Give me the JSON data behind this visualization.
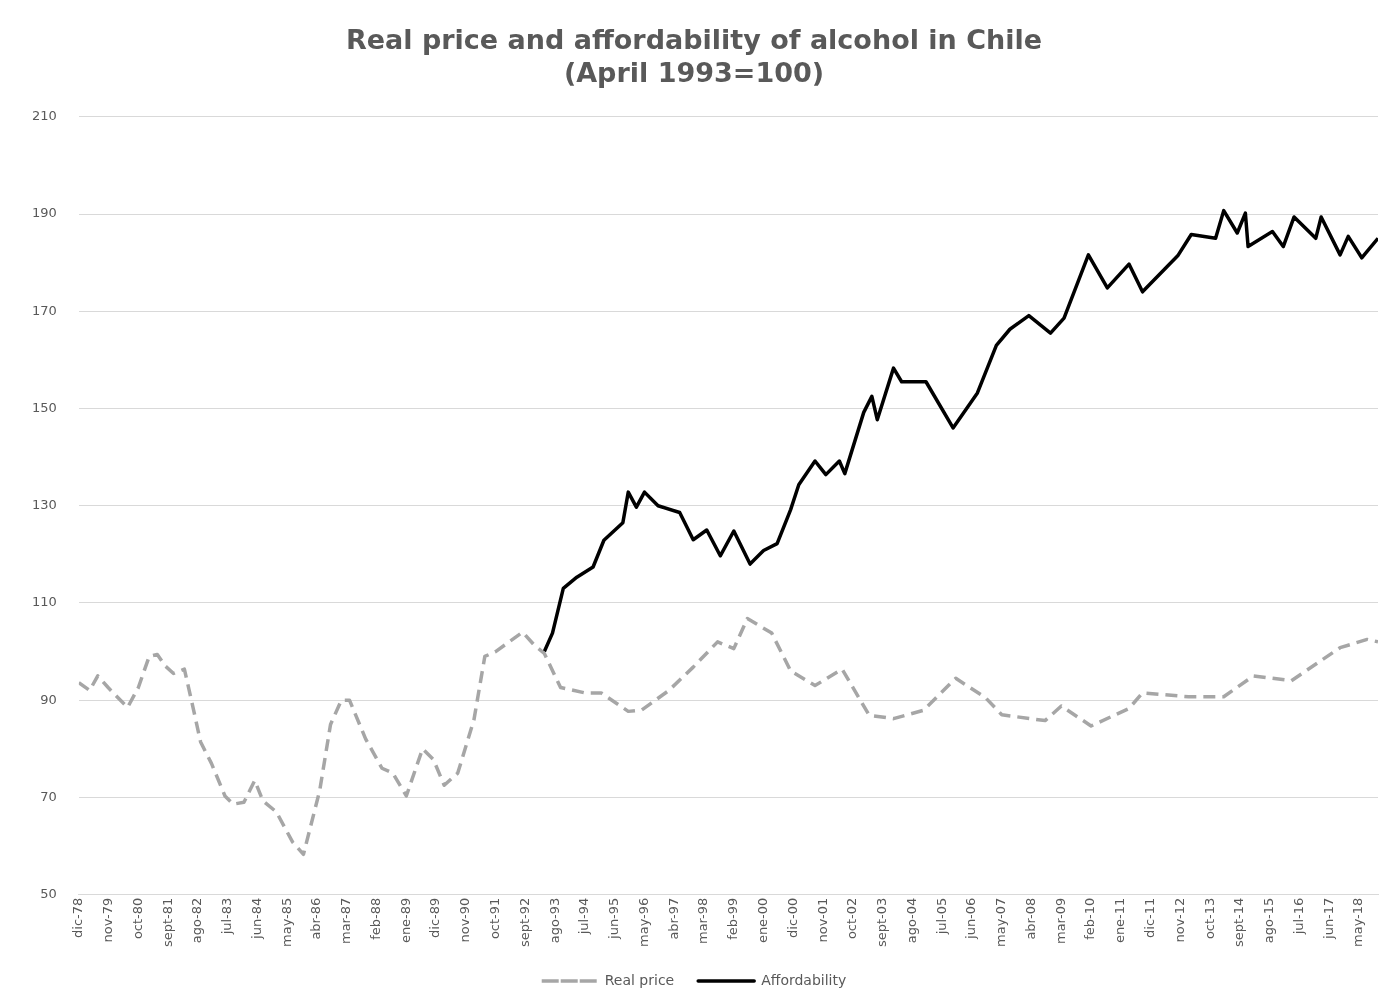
{
  "chart_data": {
    "type": "line",
    "title": "Real price and affordability of alcohol in Chile\n(April 1993=100)",
    "xlim": [
      "1978-12",
      "2018-12"
    ],
    "xticks": [
      {
        "value": "1978-12",
        "label": "dic-78"
      },
      {
        "value": "1979-11",
        "label": "nov-79"
      },
      {
        "value": "1980-10",
        "label": "oct-80"
      },
      {
        "value": "1981-09",
        "label": "sept-81"
      },
      {
        "value": "1982-08",
        "label": "ago-82"
      },
      {
        "value": "1983-07",
        "label": "jul-83"
      },
      {
        "value": "1984-06",
        "label": "jun-84"
      },
      {
        "value": "1985-05",
        "label": "may-85"
      },
      {
        "value": "1986-04",
        "label": "abr-86"
      },
      {
        "value": "1987-03",
        "label": "mar-87"
      },
      {
        "value": "1988-02",
        "label": "feb-88"
      },
      {
        "value": "1989-01",
        "label": "ene-89"
      },
      {
        "value": "1989-12",
        "label": "dic-89"
      },
      {
        "value": "1990-11",
        "label": "nov-90"
      },
      {
        "value": "1991-10",
        "label": "oct-91"
      },
      {
        "value": "1992-09",
        "label": "sept-92"
      },
      {
        "value": "1993-08",
        "label": "ago-93"
      },
      {
        "value": "1994-07",
        "label": "jul-94"
      },
      {
        "value": "1995-06",
        "label": "jun-95"
      },
      {
        "value": "1996-05",
        "label": "may-96"
      },
      {
        "value": "1997-04",
        "label": "abr-97"
      },
      {
        "value": "1998-03",
        "label": "mar-98"
      },
      {
        "value": "1999-02",
        "label": "feb-99"
      },
      {
        "value": "2000-01",
        "label": "ene-00"
      },
      {
        "value": "2000-12",
        "label": "dic-00"
      },
      {
        "value": "2001-11",
        "label": "nov-01"
      },
      {
        "value": "2002-10",
        "label": "oct-02"
      },
      {
        "value": "2003-09",
        "label": "sept-03"
      },
      {
        "value": "2004-08",
        "label": "ago-04"
      },
      {
        "value": "2005-07",
        "label": "jul-05"
      },
      {
        "value": "2006-06",
        "label": "jun-06"
      },
      {
        "value": "2007-05",
        "label": "may-07"
      },
      {
        "value": "2008-04",
        "label": "abr-08"
      },
      {
        "value": "2009-03",
        "label": "mar-09"
      },
      {
        "value": "2010-02",
        "label": "feb-10"
      },
      {
        "value": "2011-01",
        "label": "ene-11"
      },
      {
        "value": "2011-12",
        "label": "dic-11"
      },
      {
        "value": "2012-11",
        "label": "nov-12"
      },
      {
        "value": "2013-10",
        "label": "oct-13"
      },
      {
        "value": "2014-09",
        "label": "sept-14"
      },
      {
        "value": "2015-08",
        "label": "ago-15"
      },
      {
        "value": "2016-07",
        "label": "jul-16"
      },
      {
        "value": "2017-06",
        "label": "jun-17"
      },
      {
        "value": "2018-05",
        "label": "may-18"
      }
    ],
    "ylim": [
      50,
      210
    ],
    "yticks": [
      50,
      70,
      90,
      110,
      130,
      150,
      170,
      190,
      210
    ],
    "grid": "y",
    "legend": "bottom",
    "series": [
      {
        "name": "Real price",
        "color": "#a6a6a6",
        "line_style": "dashed",
        "x": [
          "1978-12",
          "1979-04",
          "1979-07",
          "1979-11",
          "1980-06",
          "1980-10",
          "1981-02",
          "1981-05",
          "1981-08",
          "1981-11",
          "1982-03",
          "1982-06",
          "1982-09",
          "1983-01",
          "1983-06",
          "1983-09",
          "1984-01",
          "1984-05",
          "1984-08",
          "1985-01",
          "1985-07",
          "1985-11",
          "1986-05",
          "1986-09",
          "1987-01",
          "1987-04",
          "1987-10",
          "1988-04",
          "1988-08",
          "1989-01",
          "1989-07",
          "1989-11",
          "1990-03",
          "1990-08",
          "1991-02",
          "1991-06",
          "1991-10",
          "1992-03",
          "1992-08",
          "1992-12",
          "1993-04",
          "1993-10",
          "1994-07",
          "1995-01",
          "1995-11",
          "1996-04",
          "1997-02",
          "1997-11",
          "1998-08",
          "1999-02",
          "1999-07",
          "2000-04",
          "2000-11",
          "2001-08",
          "2002-06",
          "2003-04",
          "2004-01",
          "2004-12",
          "2005-12",
          "2006-11",
          "2007-05",
          "2008-09",
          "2009-03",
          "2010-02",
          "2011-04",
          "2011-09",
          "2013-02",
          "2014-03",
          "2015-02",
          "2016-04",
          "2017-10",
          "2018-08",
          "2018-12"
        ],
        "values": [
          93.6,
          92,
          95,
          92.5,
          88.5,
          92.6,
          99,
          99.4,
          97,
          95.5,
          96.4,
          89,
          81.4,
          77,
          70.3,
          68.6,
          69,
          73.5,
          69.3,
          67,
          60.8,
          58.3,
          71.4,
          85,
          90,
          90,
          82,
          76,
          75,
          70.3,
          80,
          77.8,
          72.5,
          75,
          86,
          99,
          100,
          102,
          104,
          101.5,
          99.6,
          92.6,
          91.5,
          91.5,
          87.7,
          88,
          92,
          96.8,
          102,
          100.6,
          106.8,
          103.8,
          96,
          93,
          96.4,
          86.9,
          86.2,
          87.9,
          94.5,
          90.5,
          87,
          85.8,
          88.8,
          84.7,
          88.3,
          91.5,
          90.7,
          90.7,
          95,
          94,
          100.8,
          102.5,
          102
        ]
      },
      {
        "name": "Affordability",
        "color": "#000000",
        "line_style": "solid",
        "x": [
          "1993-04",
          "1993-07",
          "1993-11",
          "1994-04",
          "1994-10",
          "1995-02",
          "1995-09",
          "1995-11",
          "1996-02",
          "1996-05",
          "1996-10",
          "1997-06",
          "1997-11",
          "1998-04",
          "1998-09",
          "1999-02",
          "1999-08",
          "2000-01",
          "2000-06",
          "2000-11",
          "2001-02",
          "2001-08",
          "2001-12",
          "2002-05",
          "2002-07",
          "2003-02",
          "2003-05",
          "2003-07",
          "2004-01",
          "2004-04",
          "2005-01",
          "2005-11",
          "2006-08",
          "2007-03",
          "2007-08",
          "2008-03",
          "2008-11",
          "2009-04",
          "2010-01",
          "2010-08",
          "2011-04",
          "2011-09",
          "2012-10",
          "2013-03",
          "2013-12",
          "2014-03",
          "2014-08",
          "2014-11",
          "2014-12",
          "2015-09",
          "2016-01",
          "2016-05",
          "2017-01",
          "2017-03",
          "2017-10",
          "2018-01",
          "2018-06",
          "2018-12"
        ],
        "values": [
          100,
          103.8,
          113,
          115.3,
          117.4,
          122.9,
          126.5,
          132.8,
          129.7,
          132.8,
          130,
          128.6,
          123,
          125,
          119.7,
          124.8,
          118,
          120.8,
          122.2,
          129.2,
          134.3,
          139.2,
          136.4,
          139.2,
          136.6,
          149.2,
          152.5,
          147.7,
          158.3,
          155.5,
          155.5,
          146,
          153.2,
          163,
          166.3,
          169.1,
          165.5,
          168.6,
          181.6,
          174.8,
          179.7,
          174,
          181.4,
          185.8,
          185,
          190.7,
          186.1,
          190.2,
          183.3,
          186.4,
          183.3,
          189.4,
          185,
          189.4,
          181.6,
          185.4,
          181,
          185
        ]
      }
    ]
  }
}
